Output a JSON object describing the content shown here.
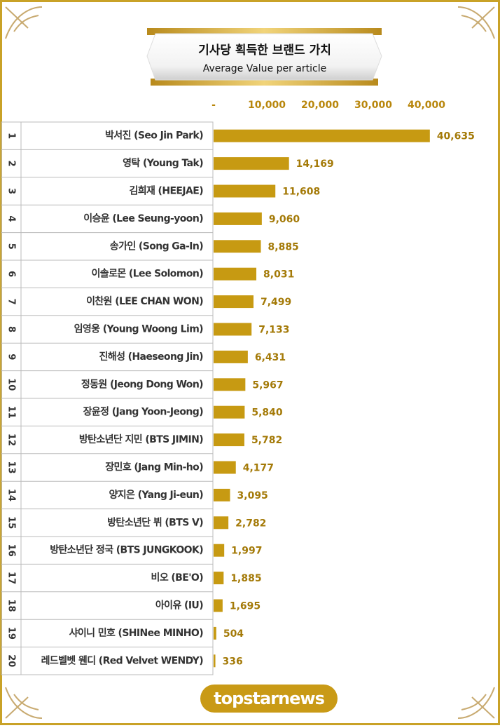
{
  "chart_data": {
    "type": "bar",
    "orientation": "horizontal",
    "title": "기사당 획득한 브랜드 가치",
    "subtitle": "Average Value per article",
    "footer": "topstarnews",
    "ranks": [
      1,
      2,
      3,
      4,
      5,
      6,
      7,
      8,
      9,
      10,
      11,
      12,
      13,
      14,
      15,
      16,
      17,
      18,
      19,
      20
    ],
    "categories": [
      "박서진 (Seo Jin Park)",
      "영탁 (Young Tak)",
      "김희재 (HEEJAE)",
      "이승윤 (Lee Seung-yoon)",
      "송가인 (Song Ga-In)",
      "이솔로몬 (Lee Solomon)",
      "이찬원 (LEE CHAN WON)",
      "임영웅 (Young Woong Lim)",
      "진해성 (Haeseong Jin)",
      "정동원 (Jeong Dong Won)",
      "장윤정 (Jang Yoon-Jeong)",
      "방탄소년단 지민 (BTS JIMIN)",
      "장민호 (Jang Min-ho)",
      "양지은 (Yang Ji-eun)",
      "방탄소년단 뷔 (BTS V)",
      "방탄소년단 정국 (BTS JUNGKOOK)",
      "비오 (BE'O)",
      "아이유 (IU)",
      "샤이니 민호 (SHINee MINHO)",
      "레드벨벳 웬디 (Red Velvet WENDY)"
    ],
    "values": [
      40635,
      14169,
      11608,
      9060,
      8885,
      8031,
      7499,
      7133,
      6431,
      5967,
      5840,
      5782,
      4177,
      3095,
      2782,
      1997,
      1885,
      1695,
      504,
      336
    ],
    "value_labels": [
      "40,635",
      "14,169",
      "11,608",
      "9,060",
      "8,885",
      "8,031",
      "7,499",
      "7,133",
      "6,431",
      "5,967",
      "5,840",
      "5,782",
      "4,177",
      "3,095",
      "2,782",
      "1,997",
      "1,885",
      "1,695",
      "504",
      "336"
    ],
    "color": "#c79a12",
    "xlim": [
      0,
      50000
    ],
    "xticks": [
      {
        "value": 0,
        "label": "-"
      },
      {
        "value": 10000,
        "label": "10,000"
      },
      {
        "value": 20000,
        "label": "20,000"
      },
      {
        "value": 30000,
        "label": "30,000"
      },
      {
        "value": 40000,
        "label": "40,000"
      }
    ],
    "grid": false
  }
}
